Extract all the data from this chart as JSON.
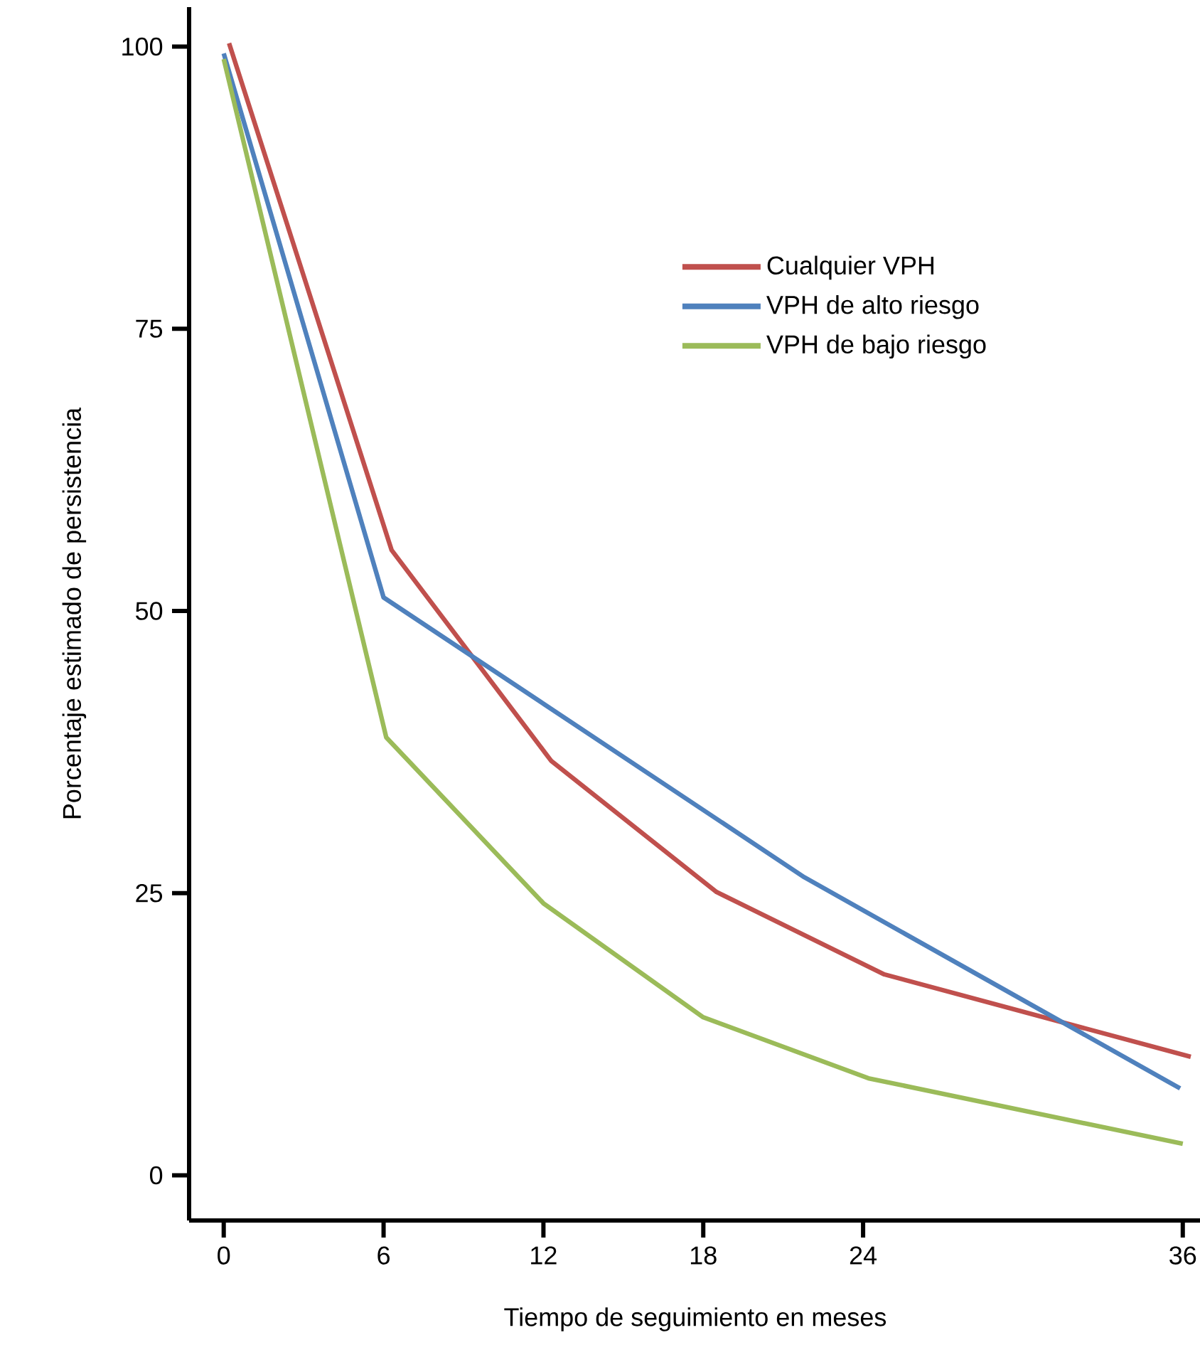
{
  "chart_data": {
    "type": "line",
    "xlabel": "Tiempo de seguimiento en meses",
    "ylabel": "Porcentaje estimado de persistencia",
    "xlim": [
      -1.3,
      36.7
    ],
    "xticks": [
      0,
      6,
      12,
      18,
      24,
      36
    ],
    "ylim": [
      -4,
      103.5
    ],
    "yticks": [
      0,
      25,
      50,
      75,
      100
    ],
    "grid": false,
    "legend": "top right",
    "marker": "none",
    "line_style": "solid",
    "series": [
      {
        "name": "Cualquier VPH",
        "color": "#c0504d",
        "x": [
          0.2,
          6.3,
          12.3,
          18.5,
          24.8,
          36.3
        ],
        "values": [
          100.3,
          55.4,
          36.7,
          25.1,
          17.8,
          10.5
        ]
      },
      {
        "name": "VPH de alto riesgo",
        "color": "#4f81bd",
        "x": [
          0,
          6,
          21.8,
          35.9
        ],
        "values": [
          99.4,
          51.2,
          26.4,
          7.7
        ]
      },
      {
        "name": "VPH de bajo riesgo",
        "color": "#9bbb59",
        "x": [
          0,
          6.1,
          12,
          18,
          24.2,
          36
        ],
        "values": [
          98.9,
          38.8,
          24.1,
          14.0,
          8.6,
          2.8
        ]
      }
    ]
  }
}
